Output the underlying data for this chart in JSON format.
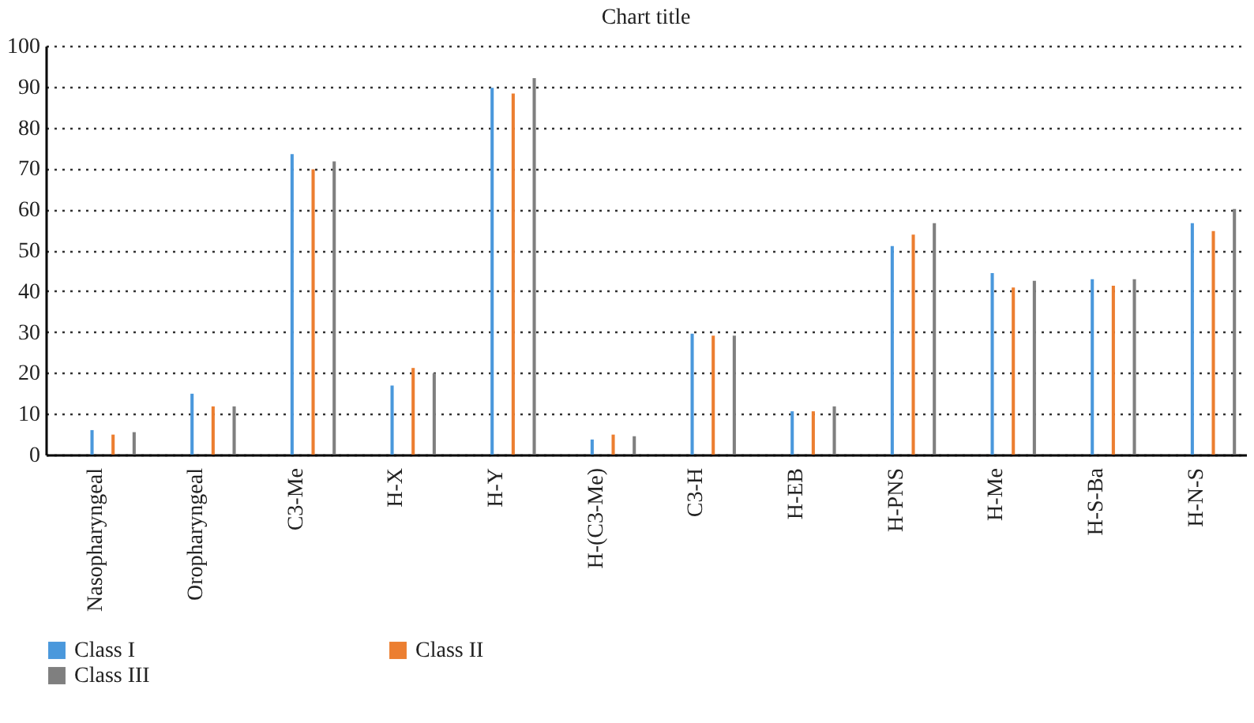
{
  "chart_data": {
    "type": "bar",
    "title": "Chart title",
    "categories": [
      "Nasopharyngeal",
      "Oropharyngeal",
      "C3-Me",
      "H-X",
      "H-Y",
      "H-(C3-Me)",
      "C3-H",
      "H-EB",
      "H-PNS",
      "H-Me",
      "H-S-Ba",
      "H-N-S"
    ],
    "series": [
      {
        "name": "Class I",
        "color": "#4a98dc",
        "values": [
          6.0,
          14.9,
          73.5,
          16.9,
          89.7,
          3.7,
          29.6,
          10.6,
          51.0,
          44.4,
          42.9,
          56.6
        ]
      },
      {
        "name": "Class II",
        "color": "#ec7e30",
        "values": [
          4.9,
          11.8,
          69.8,
          21.2,
          88.3,
          4.9,
          29.1,
          10.6,
          53.8,
          40.9,
          41.3,
          54.7
        ]
      },
      {
        "name": "Class III",
        "color": "#7f7f7f",
        "values": [
          5.5,
          11.8,
          71.7,
          19.9,
          92.1,
          4.5,
          29.1,
          11.8,
          56.6,
          42.5,
          42.9,
          60.1
        ]
      }
    ],
    "ylim": [
      0,
      100
    ],
    "yticks": [
      0,
      10,
      20,
      30,
      40,
      50,
      60,
      70,
      80,
      90,
      100
    ],
    "grid": "y",
    "legend": "bottom left"
  }
}
